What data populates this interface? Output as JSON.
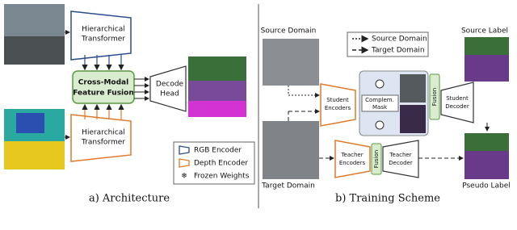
{
  "architecture": {
    "top_encoder": [
      "Hierarchical",
      "Transformer"
    ],
    "fusion": [
      "Cross-Modal",
      "Feature Fusion"
    ],
    "decode_head": [
      "Decode",
      "Head"
    ],
    "bottom_encoder": [
      "Hierarchical",
      "Transformer"
    ],
    "legend": [
      "RGB Encoder",
      "Depth Encoder",
      "Frozen Weights"
    ],
    "caption": "a) Architecture"
  },
  "training": {
    "source_domain": "Source Domain",
    "source_label": "Source Label",
    "legend": [
      "Source Domain",
      "Target Domain"
    ],
    "student_encoders": [
      "Student",
      "Encoders"
    ],
    "mask": [
      "Complem.",
      "Mask"
    ],
    "student_fusion": "Fusion",
    "student_decoder": [
      "Student",
      "Decoder"
    ],
    "teacher_encoders": [
      "Teacher",
      "Encoders"
    ],
    "teacher_fusion": "Fusion",
    "teacher_decoder": [
      "Teacher",
      "Decoder"
    ],
    "target_domain": "Target Domain",
    "pseudo_label": "Pseudo Label",
    "caption": "b) Training Scheme"
  }
}
